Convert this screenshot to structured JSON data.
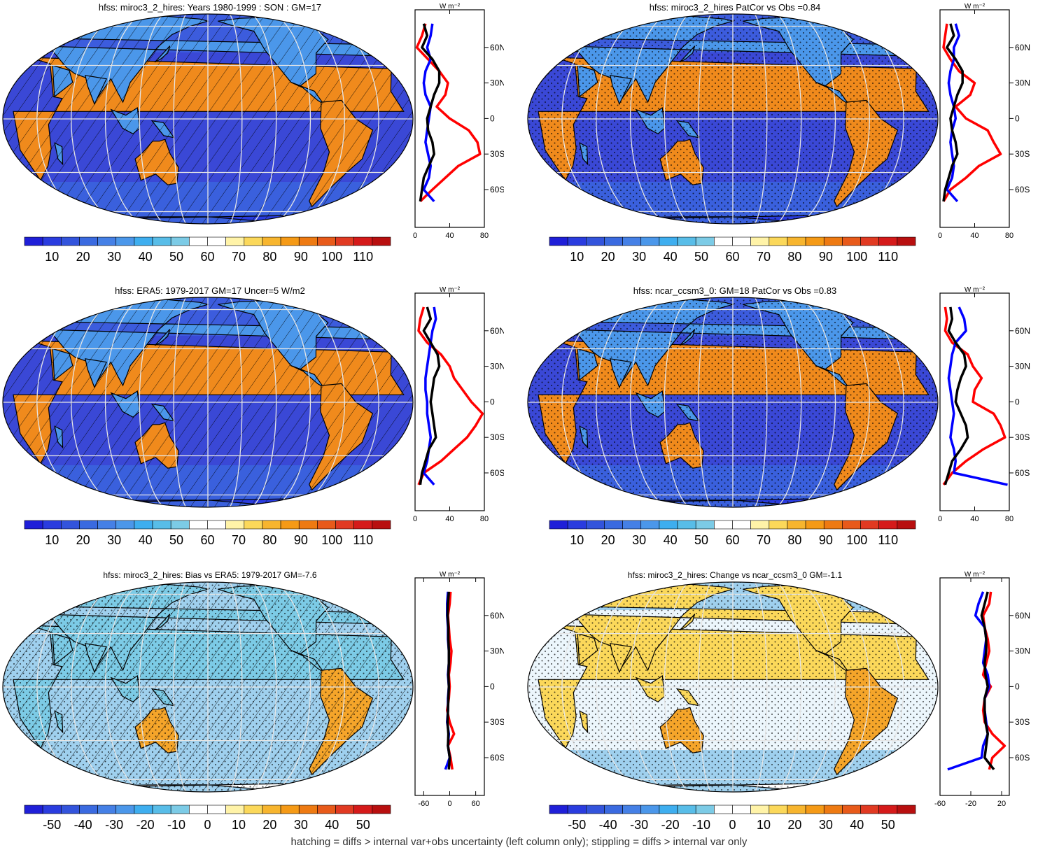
{
  "colors": {
    "seq": [
      "#1f1fd8",
      "#2a3cdf",
      "#3354dc",
      "#3a6ae0",
      "#4580e6",
      "#4b97ea",
      "#3eaeef",
      "#58bde8",
      "#7ccbe6",
      "#ffffff",
      "#ffffff",
      "#fff3a8",
      "#fbd85a",
      "#f7b52e",
      "#f59a16",
      "#ee7a12",
      "#e85a1a",
      "#e13a22",
      "#d51a1a",
      "#b80f0f"
    ],
    "div": [
      "#1f1fd8",
      "#2a3cdf",
      "#3354dc",
      "#3a6ae0",
      "#4580e6",
      "#4b97ea",
      "#3eaeef",
      "#58bde8",
      "#7ccbe6",
      "#ffffff",
      "#ffffff",
      "#fff3a8",
      "#fbd85a",
      "#f7b52e",
      "#f59a16",
      "#ee7a12",
      "#e85a1a",
      "#e13a22",
      "#d51a1a",
      "#b80f0f"
    ],
    "ocean_seq": "#3a48d6",
    "ocean_div": "#9fd0ee",
    "land_hot": "#f08a1c",
    "grid": "#e6e6e6",
    "line_model": "#ff0000",
    "line_obs": "#0000ff",
    "line_mean": "#000000"
  },
  "chart_data": [
    {
      "id": "p1",
      "type": "heatmap",
      "title": "hfss: miroc3_2_hires: Years 1980-1999 : SON : GM=17",
      "colorbar_ticks": [
        "10",
        "20",
        "30",
        "40",
        "50",
        "60",
        "70",
        "80",
        "90",
        "100",
        "110"
      ],
      "scheme": "seq",
      "hatch": true,
      "stipple": false,
      "profile": {
        "unit": "W m⁻²",
        "lat_ticks": [
          "60N",
          "30N",
          "0",
          "30S",
          "60S"
        ],
        "x_ticks": [
          "0",
          "40",
          "80"
        ],
        "xlim": [
          0,
          80
        ],
        "lat": [
          80,
          70,
          60,
          50,
          40,
          30,
          20,
          10,
          0,
          -10,
          -20,
          -30,
          -40,
          -50,
          -60,
          -70
        ],
        "red": [
          12,
          8,
          2,
          15,
          28,
          38,
          35,
          25,
          40,
          62,
          72,
          75,
          50,
          35,
          20,
          6
        ],
        "blue": [
          20,
          18,
          14,
          18,
          12,
          10,
          12,
          18,
          16,
          14,
          12,
          15,
          18,
          16,
          10,
          22
        ],
        "black": [
          10,
          14,
          8,
          20,
          28,
          28,
          22,
          18,
          14,
          15,
          20,
          22,
          16,
          10,
          8,
          6
        ]
      }
    },
    {
      "id": "p2",
      "type": "heatmap",
      "title": "hfss: miroc3_2_hires PatCor vs Obs =0.84",
      "colorbar_ticks": [
        "10",
        "20",
        "30",
        "40",
        "50",
        "60",
        "70",
        "80",
        "90",
        "100",
        "110"
      ],
      "scheme": "seq",
      "hatch": false,
      "stipple": true,
      "profile": {
        "unit": "W m⁻²",
        "lat_ticks": [
          "60N",
          "30N",
          "0",
          "30S",
          "60S"
        ],
        "x_ticks": [
          "0",
          "40",
          "80"
        ],
        "xlim": [
          0,
          80
        ],
        "lat": [
          80,
          70,
          60,
          50,
          40,
          30,
          20,
          10,
          0,
          -10,
          -20,
          -30,
          -40,
          -50,
          -60,
          -70
        ],
        "red": [
          8,
          6,
          4,
          12,
          22,
          40,
          35,
          18,
          30,
          55,
          62,
          70,
          45,
          30,
          12,
          4
        ],
        "blue": [
          18,
          22,
          16,
          16,
          12,
          10,
          12,
          16,
          18,
          14,
          12,
          14,
          16,
          14,
          8,
          20
        ],
        "black": [
          12,
          16,
          8,
          18,
          26,
          26,
          20,
          16,
          12,
          14,
          18,
          20,
          14,
          10,
          6,
          4
        ]
      }
    },
    {
      "id": "p3",
      "type": "heatmap",
      "title": "hfss: ERA5: 1979-2017 GM=17 Uncer=5 W/m2",
      "colorbar_ticks": [
        "10",
        "20",
        "30",
        "40",
        "50",
        "60",
        "70",
        "80",
        "90",
        "100",
        "110"
      ],
      "scheme": "seq",
      "hatch": true,
      "stipple": false,
      "profile": {
        "unit": "W m⁻²",
        "lat_ticks": [
          "60N",
          "30N",
          "0",
          "30S",
          "60S"
        ],
        "x_ticks": [
          "0",
          "40",
          "80"
        ],
        "xlim": [
          0,
          80
        ],
        "lat": [
          80,
          70,
          60,
          50,
          40,
          30,
          20,
          10,
          0,
          -10,
          -20,
          -30,
          -40,
          -50,
          -60,
          -70
        ],
        "red": [
          10,
          6,
          4,
          14,
          30,
          40,
          45,
          55,
          65,
          78,
          70,
          60,
          45,
          30,
          10,
          4
        ],
        "blue": [
          22,
          24,
          20,
          18,
          16,
          14,
          12,
          12,
          14,
          14,
          16,
          18,
          16,
          14,
          10,
          22
        ],
        "black": [
          14,
          18,
          10,
          18,
          26,
          28,
          22,
          20,
          18,
          20,
          22,
          24,
          16,
          12,
          8,
          6
        ]
      }
    },
    {
      "id": "p4",
      "type": "heatmap",
      "title": "hfss: ncar_ccsm3_0: GM=18 PatCor vs Obs =0.83",
      "colorbar_ticks": [
        "10",
        "20",
        "30",
        "40",
        "50",
        "60",
        "70",
        "80",
        "90",
        "100",
        "110"
      ],
      "scheme": "seq",
      "hatch": false,
      "stipple": true,
      "profile": {
        "unit": "W m⁻²",
        "lat_ticks": [
          "60N",
          "30N",
          "0",
          "30S",
          "60S"
        ],
        "x_ticks": [
          "0",
          "40",
          "80"
        ],
        "xlim": [
          0,
          80
        ],
        "lat": [
          80,
          70,
          60,
          50,
          40,
          30,
          20,
          10,
          0,
          -10,
          -20,
          -30,
          -40,
          -50,
          -60,
          -70
        ],
        "red": [
          6,
          8,
          6,
          14,
          32,
          38,
          48,
          40,
          38,
          62,
          70,
          75,
          50,
          30,
          14,
          4
        ],
        "blue": [
          22,
          28,
          30,
          18,
          14,
          12,
          10,
          12,
          14,
          16,
          14,
          12,
          16,
          18,
          16,
          78
        ],
        "black": [
          12,
          14,
          10,
          18,
          28,
          30,
          24,
          20,
          18,
          24,
          30,
          32,
          24,
          14,
          10,
          6
        ]
      }
    },
    {
      "id": "p5",
      "type": "heatmap",
      "title": "hfss: miroc3_2_hires: Bias vs ERA5: 1979-2017  GM=-7.6",
      "colorbar_ticks": [
        "-50",
        "-40",
        "-30",
        "-20",
        "-10",
        "0",
        "10",
        "20",
        "30",
        "40",
        "50"
      ],
      "scheme": "div",
      "hatch": true,
      "stipple": true,
      "profile": {
        "unit": "W m⁻²",
        "lat_ticks": [
          "60N",
          "30N",
          "0",
          "30S",
          "60S"
        ],
        "x_ticks": [
          "-60",
          "0",
          "60"
        ],
        "xlim": [
          -80,
          80
        ],
        "lat": [
          80,
          70,
          60,
          50,
          40,
          30,
          20,
          10,
          0,
          -10,
          -20,
          -30,
          -40,
          -50,
          -60,
          -70
        ],
        "red": [
          2,
          0,
          -4,
          -2,
          0,
          4,
          2,
          -2,
          0,
          -2,
          -6,
          0,
          10,
          -4,
          2,
          6
        ],
        "blue": [
          -4,
          -6,
          -6,
          -4,
          -4,
          -2,
          -2,
          -4,
          -2,
          -4,
          -4,
          -6,
          -2,
          -4,
          0,
          -10
        ],
        "black": [
          -2,
          -4,
          -5,
          -3,
          -3,
          -2,
          -2,
          -3,
          -2,
          -3,
          -4,
          -5,
          -3,
          -4,
          0,
          -2
        ]
      }
    },
    {
      "id": "p6",
      "type": "heatmap",
      "title": "hfss: miroc3_2_hires: Change vs ncar_ccsm3_0 GM=-1.1",
      "colorbar_ticks": [
        "-50",
        "-40",
        "-30",
        "-20",
        "-10",
        "0",
        "10",
        "20",
        "30",
        "40",
        "50"
      ],
      "scheme": "div",
      "hatch": false,
      "stipple": true,
      "profile": {
        "unit": "W m⁻²",
        "lat_ticks": [
          "60N",
          "30N",
          "0",
          "30S",
          "60S"
        ],
        "x_ticks": [
          "-60",
          "-20",
          "20"
        ],
        "xlim": [
          -60,
          30
        ],
        "lat": [
          80,
          70,
          60,
          50,
          40,
          30,
          20,
          10,
          0,
          -10,
          -20,
          -30,
          -40,
          -50,
          -60,
          -70
        ],
        "red": [
          6,
          4,
          -4,
          -2,
          2,
          4,
          0,
          -4,
          6,
          -2,
          -4,
          -2,
          8,
          24,
          8,
          4
        ],
        "blue": [
          -4,
          -10,
          -14,
          -2,
          0,
          -2,
          -4,
          2,
          4,
          -2,
          -2,
          0,
          2,
          -4,
          -6,
          -50
        ],
        "black": [
          2,
          -2,
          -6,
          -2,
          0,
          0,
          -2,
          -1,
          2,
          -2,
          -2,
          -1,
          2,
          0,
          -2,
          10
        ]
      }
    }
  ],
  "footer": "hatching = diffs > internal var+obs uncertainty (left column only); stippling = diffs > internal var only"
}
